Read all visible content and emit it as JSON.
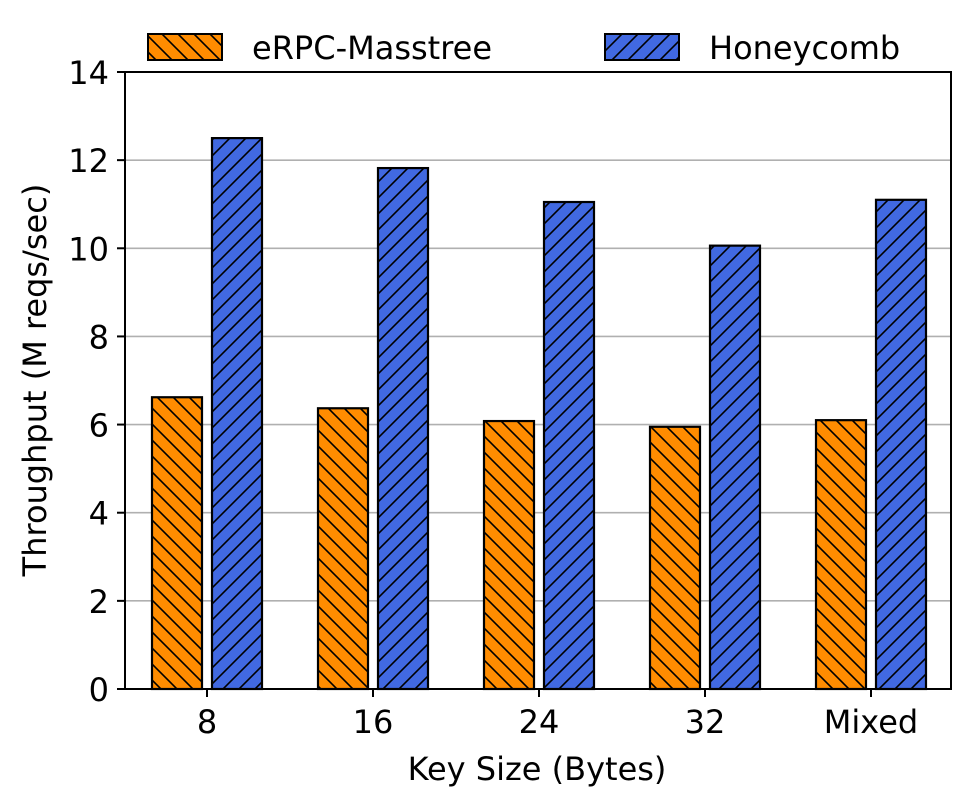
{
  "chart_data": {
    "type": "bar",
    "title": "",
    "xlabel": "Key Size (Bytes)",
    "ylabel": "Throughput (M reqs/sec)",
    "categories": [
      "8",
      "16",
      "24",
      "32",
      "Mixed"
    ],
    "ylim": [
      0,
      14
    ],
    "yticks": [
      "0",
      "2",
      "4",
      "6",
      "8",
      "10",
      "12",
      "14"
    ],
    "grid": "horizontal",
    "legend_position": "top",
    "series": [
      {
        "name": "eRPC-Masstree",
        "color": "#ff8c00",
        "hatch": "backslash",
        "values": [
          6.62,
          6.37,
          6.08,
          5.95,
          6.1
        ]
      },
      {
        "name": "Honeycomb",
        "color": "#4169e1",
        "hatch": "slash",
        "values": [
          12.5,
          11.82,
          11.05,
          10.06,
          11.1
        ]
      }
    ]
  }
}
